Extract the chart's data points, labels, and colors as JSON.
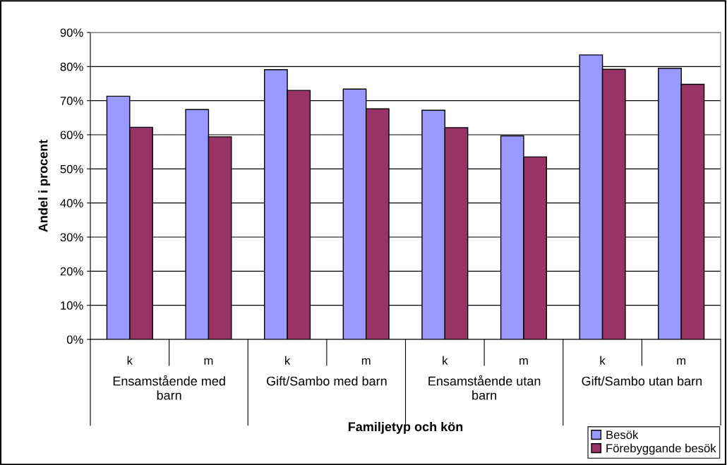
{
  "chart_data": {
    "type": "bar",
    "xlabel": "Familjetyp och kön",
    "ylabel": "Andel i procent",
    "categories": [
      "k",
      "m",
      "k",
      "m",
      "k",
      "m",
      "k",
      "m"
    ],
    "annotations": [
      "Ensamstående med barn",
      "Gift/Sambo med barn",
      "Ensamstående utan barn",
      "Gift/Sambo utan barn"
    ],
    "series": [
      {
        "name": "Besök",
        "color": "#9999ff",
        "values": [
          71.3,
          67.4,
          79.1,
          73.4,
          67.2,
          59.7,
          83.4,
          79.5
        ]
      },
      {
        "name": "Förebyggande besök",
        "color": "#993366",
        "values": [
          62.2,
          59.4,
          73.0,
          67.6,
          62.1,
          53.5,
          79.2,
          74.8
        ]
      }
    ],
    "ylim": [
      0,
      90
    ],
    "yticks": [
      {
        "value": 0,
        "label": "0%"
      },
      {
        "value": 10,
        "label": "10%"
      },
      {
        "value": 20,
        "label": "20%"
      },
      {
        "value": 30,
        "label": "30%"
      },
      {
        "value": 40,
        "label": "40%"
      },
      {
        "value": 50,
        "label": "50%"
      },
      {
        "value": 60,
        "label": "60%"
      },
      {
        "value": 70,
        "label": "70%"
      },
      {
        "value": 80,
        "label": "80%"
      },
      {
        "value": 90,
        "label": "90%"
      }
    ],
    "grid": "y",
    "legend": "bottom right"
  }
}
